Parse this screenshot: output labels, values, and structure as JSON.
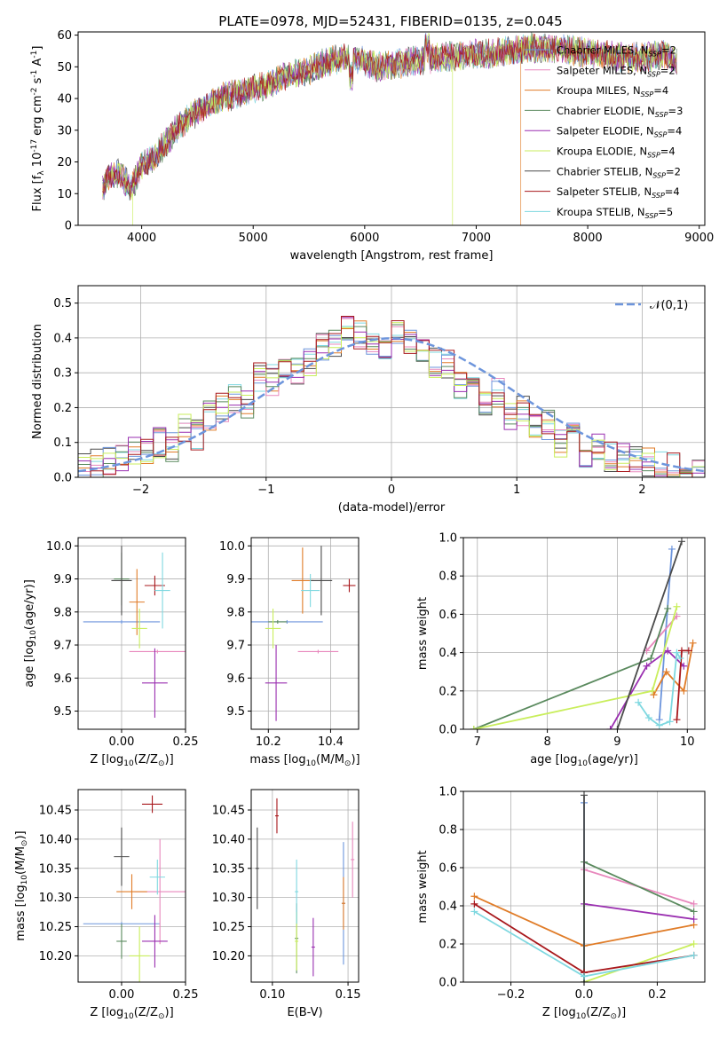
{
  "title": "PLATE=0978, MJD=52431, FIBERID=0135, z=0.045",
  "models": [
    {
      "name": "Chabrier MILES, N$_{SSP}$=2",
      "base": "Chabrier MILES, N",
      "sub": "SSP",
      "tail": "=2",
      "color": "#6d95dc"
    },
    {
      "name": "Salpeter MILES, N$_{SSP}$=2",
      "base": "Salpeter MILES, N",
      "sub": "SSP",
      "tail": "=2",
      "color": "#e888bd"
    },
    {
      "name": "Kroupa MILES, N$_{SSP}$=4",
      "base": "Kroupa MILES, N",
      "sub": "SSP",
      "tail": "=4",
      "color": "#e07c28"
    },
    {
      "name": "Chabrier ELODIE, N$_{SSP}$=3",
      "base": "Chabrier ELODIE, N",
      "sub": "SSP",
      "tail": "=3",
      "color": "#5a8a5e"
    },
    {
      "name": "Salpeter ELODIE, N$_{SSP}$=4",
      "base": "Salpeter ELODIE, N",
      "sub": "SSP",
      "tail": "=4",
      "color": "#9a2fb0"
    },
    {
      "name": "Kroupa ELODIE, N$_{SSP}$=4",
      "base": "Kroupa ELODIE, N",
      "sub": "SSP",
      "tail": "=4",
      "color": "#c9ee5c"
    },
    {
      "name": "Chabrier STELIB, N$_{SSP}$=2",
      "base": "Chabrier STELIB, N",
      "sub": "SSP",
      "tail": "=2",
      "color": "#4a4a4a"
    },
    {
      "name": "Salpeter STELIB, N$_{SSP}$=4",
      "base": "Salpeter STELIB, N",
      "sub": "SSP",
      "tail": "=4",
      "color": "#a8181c"
    },
    {
      "name": "Kroupa STELIB, N$_{SSP}$=5",
      "base": "Kroupa STELIB, N",
      "sub": "SSP",
      "tail": "=5",
      "color": "#7fd8e0"
    }
  ],
  "chart_data": [
    {
      "panel": "spectrum",
      "type": "line",
      "xlabel": "wavelength [Angstrom, rest frame]",
      "ylabel": "Flux [f$_\\lambda$ 10$^{-17}$ erg cm$^{-2}$ s$^{-1}$ A$^{-1}$]",
      "xlim": [
        3430,
        9050
      ],
      "ylim": [
        0,
        61
      ],
      "xticks": [
        4000,
        5000,
        6000,
        7000,
        8000,
        9000
      ],
      "yticks": [
        0,
        10,
        20,
        30,
        40,
        50,
        60
      ],
      "grid": false,
      "legend": "right",
      "spectrum_envelope": {
        "x": [
          3650,
          3700,
          3800,
          3900,
          3950,
          4000,
          4100,
          4200,
          4300,
          4400,
          4500,
          4700,
          4900,
          5100,
          5300,
          5500,
          5700,
          5900,
          6100,
          6300,
          6500,
          6700,
          6900,
          7100,
          7300,
          7500,
          7700,
          7900,
          8100,
          8300,
          8500,
          8700,
          8800
        ],
        "y": [
          12,
          15,
          17,
          11,
          15,
          19,
          21,
          25,
          30,
          33,
          36,
          40,
          42,
          44,
          47,
          49,
          52,
          53,
          50,
          51,
          52,
          53,
          54,
          54,
          55,
          56,
          56,
          55,
          54,
          53,
          53,
          54,
          51
        ]
      },
      "drops_to_zero": [
        {
          "model": "Kroupa ELODIE, N$_{SSP}$=4",
          "x": 3920
        },
        {
          "model": "Kroupa ELODIE, N$_{SSP}$=4",
          "x": 6790
        },
        {
          "model": "Kroupa MILES, N$_{SSP}$=4",
          "x": 7400
        }
      ]
    },
    {
      "panel": "residuals",
      "type": "histogram",
      "xlabel": "(data-model)/error",
      "ylabel": "Normed distribution",
      "xlim": [
        -2.5,
        2.5
      ],
      "ylim": [
        0,
        0.55
      ],
      "xticks": [
        -2,
        -1,
        0,
        1,
        2
      ],
      "yticks": [
        0,
        0.1,
        0.2,
        0.3,
        0.4,
        0.5
      ],
      "grid": true,
      "legend": "top-right",
      "reference_label": "$\\mathcal{N}(0,1)$",
      "reference": "normal mean 0 sigma 1",
      "bin_width": 0.1,
      "typical_bins": {
        "centers": [
          -2.45,
          -2.35,
          -2.25,
          -2.15,
          -2.05,
          -1.95,
          -1.85,
          -1.75,
          -1.65,
          -1.55,
          -1.45,
          -1.35,
          -1.25,
          -1.15,
          -1.05,
          -0.95,
          -0.85,
          -0.75,
          -0.65,
          -0.55,
          -0.45,
          -0.35,
          -0.25,
          -0.15,
          -0.05,
          0.05,
          0.15,
          0.25,
          0.35,
          0.45,
          0.55,
          0.65,
          0.75,
          0.85,
          0.95,
          1.05,
          1.15,
          1.25,
          1.35,
          1.45,
          1.55,
          1.65,
          1.75,
          1.85,
          1.95,
          2.05,
          2.15,
          2.25,
          2.35,
          2.45
        ],
        "values": [
          0.03,
          0.04,
          0.05,
          0.06,
          0.07,
          0.07,
          0.1,
          0.09,
          0.14,
          0.12,
          0.18,
          0.2,
          0.23,
          0.21,
          0.29,
          0.28,
          0.31,
          0.31,
          0.33,
          0.37,
          0.38,
          0.42,
          0.41,
          0.39,
          0.38,
          0.41,
          0.38,
          0.37,
          0.33,
          0.32,
          0.26,
          0.3,
          0.22,
          0.24,
          0.17,
          0.19,
          0.14,
          0.15,
          0.1,
          0.12,
          0.07,
          0.09,
          0.06,
          0.06,
          0.05,
          0.04,
          0.03,
          0.03,
          0.03,
          0.02
        ]
      }
    },
    {
      "panel": "Z-age",
      "type": "scatter",
      "xlabel": "Z [log$_{10}$(Z/Z$_\\odot$)]",
      "ylabel": "age  [log$_{10}$(age/yr)]",
      "xlim": [
        -0.17,
        0.25
      ],
      "ylim": [
        9.445,
        10.025
      ],
      "xticks": [
        0.0,
        0.25
      ],
      "yticks": [
        9.5,
        9.6,
        9.7,
        9.8,
        9.9,
        10.0
      ],
      "grid": true,
      "points": [
        {
          "model": 0,
          "x": 0.0,
          "y": 9.77,
          "xerr": 0.15,
          "yerr": 0.0
        },
        {
          "model": 1,
          "x": 0.14,
          "y": 9.68,
          "xerr": 0.11,
          "yerr": 0.0
        },
        {
          "model": 2,
          "x": 0.06,
          "y": 9.83,
          "xerr": 0.03,
          "yerr": 0.1
        },
        {
          "model": 3,
          "x": 0.0,
          "y": 9.9,
          "xerr": 0.03,
          "yerr": 0.08
        },
        {
          "model": 4,
          "x": 0.13,
          "y": 9.585,
          "xerr": 0.05,
          "yerr": 0.105
        },
        {
          "model": 5,
          "x": 0.07,
          "y": 9.75,
          "xerr": 0.03,
          "yerr": 0.06
        },
        {
          "model": 6,
          "x": 0.0,
          "y": 9.895,
          "xerr": 0.04,
          "yerr": 0.105
        },
        {
          "model": 7,
          "x": 0.13,
          "y": 9.88,
          "xerr": 0.04,
          "yerr": 0.03
        },
        {
          "model": 8,
          "x": 0.16,
          "y": 9.865,
          "xerr": 0.03,
          "yerr": 0.115
        }
      ]
    },
    {
      "panel": "mass-age",
      "type": "scatter",
      "xlabel": "mass [log$_{10}$(M/M$_\\odot$)]",
      "ylabel": "",
      "xlim": [
        10.145,
        10.49
      ],
      "ylim": [
        9.445,
        10.025
      ],
      "xticks": [
        10.2,
        10.4
      ],
      "yticks": [
        9.5,
        9.6,
        9.7,
        9.8,
        9.9,
        10.0
      ],
      "grid": true,
      "points": [
        {
          "model": 0,
          "x": 10.26,
          "y": 9.77,
          "xerr": 0.115,
          "yerr": 0.0
        },
        {
          "model": 1,
          "x": 10.36,
          "y": 9.68,
          "xerr": 0.065,
          "yerr": 0.0
        },
        {
          "model": 2,
          "x": 10.31,
          "y": 9.895,
          "xerr": 0.035,
          "yerr": 0.1
        },
        {
          "model": 3,
          "x": 10.23,
          "y": 9.77,
          "xerr": 0.03,
          "yerr": 0.0
        },
        {
          "model": 4,
          "x": 10.225,
          "y": 9.585,
          "xerr": 0.035,
          "yerr": 0.115
        },
        {
          "model": 5,
          "x": 10.215,
          "y": 9.75,
          "xerr": 0.025,
          "yerr": 0.06
        },
        {
          "model": 6,
          "x": 10.37,
          "y": 9.895,
          "xerr": 0.035,
          "yerr": 0.105
        },
        {
          "model": 7,
          "x": 10.46,
          "y": 9.88,
          "xerr": 0.02,
          "yerr": 0.02
        },
        {
          "model": 8,
          "x": 10.335,
          "y": 9.865,
          "xerr": 0.03,
          "yerr": 0.05
        }
      ]
    },
    {
      "panel": "age-weight",
      "type": "line",
      "xlabel": "age  [log$_{10}$(age/yr)]",
      "ylabel": "mass weight",
      "xlim": [
        6.8,
        10.25
      ],
      "ylim": [
        0,
        1.0
      ],
      "xticks": [
        7,
        8,
        9,
        10
      ],
      "yticks": [
        0.0,
        0.2,
        0.4,
        0.6,
        0.8,
        1.0
      ],
      "grid": true,
      "series": [
        {
          "model": 0,
          "x": [
            9.6,
            9.78
          ],
          "y": [
            0.05,
            0.94
          ]
        },
        {
          "model": 1,
          "x": [
            9.42,
            9.85
          ],
          "y": [
            0.41,
            0.59
          ]
        },
        {
          "model": 2,
          "x": [
            9.52,
            9.7,
            9.95,
            10.08
          ],
          "y": [
            0.18,
            0.3,
            0.2,
            0.45
          ]
        },
        {
          "model": 3,
          "x": [
            6.95,
            9.48,
            9.72
          ],
          "y": [
            0.0,
            0.37,
            0.63
          ]
        },
        {
          "model": 4,
          "x": [
            8.9,
            9.42,
            9.72,
            9.95
          ],
          "y": [
            0.0,
            0.33,
            0.41,
            0.33
          ]
        },
        {
          "model": 5,
          "x": [
            6.95,
            9.5,
            9.85
          ],
          "y": [
            0.0,
            0.2,
            0.64
          ]
        },
        {
          "model": 6,
          "x": [
            9.0,
            9.92
          ],
          "y": [
            0.0,
            0.98
          ]
        },
        {
          "model": 7,
          "x": [
            9.85,
            9.92,
            10.02
          ],
          "y": [
            0.05,
            0.41,
            0.41
          ]
        },
        {
          "model": 8,
          "x": [
            9.3,
            9.45,
            9.6,
            9.75,
            9.85,
            9.9
          ],
          "y": [
            0.14,
            0.06,
            0.02,
            0.04,
            0.4,
            0.37
          ]
        }
      ]
    },
    {
      "panel": "Z-mass",
      "type": "scatter",
      "xlabel": "Z [log$_{10}$(Z/Z$_\\odot$)]",
      "ylabel": "mass [log$_{10}$(M/M$_\\odot$)]",
      "xlim": [
        -0.17,
        0.25
      ],
      "ylim": [
        10.155,
        10.485
      ],
      "xticks": [
        0.0,
        0.25
      ],
      "yticks": [
        10.2,
        10.25,
        10.3,
        10.35,
        10.4,
        10.45
      ],
      "grid": true,
      "points": [
        {
          "model": 0,
          "x": 0.0,
          "y": 10.255,
          "xerr": 0.15,
          "yerr": 0.0
        },
        {
          "model": 1,
          "x": 0.15,
          "y": 10.31,
          "xerr": 0.1,
          "yerr": 0.09
        },
        {
          "model": 2,
          "x": 0.04,
          "y": 10.31,
          "xerr": 0.06,
          "yerr": 0.03
        },
        {
          "model": 3,
          "x": 0.0,
          "y": 10.225,
          "xerr": 0.02,
          "yerr": 0.03
        },
        {
          "model": 4,
          "x": 0.13,
          "y": 10.225,
          "xerr": 0.05,
          "yerr": 0.045
        },
        {
          "model": 5,
          "x": 0.07,
          "y": 10.2,
          "xerr": 0.04,
          "yerr": 0.05
        },
        {
          "model": 6,
          "x": 0.0,
          "y": 10.37,
          "xerr": 0.03,
          "yerr": 0.05
        },
        {
          "model": 7,
          "x": 0.12,
          "y": 10.46,
          "xerr": 0.04,
          "yerr": 0.015
        },
        {
          "model": 8,
          "x": 0.14,
          "y": 10.335,
          "xerr": 0.03,
          "yerr": 0.03
        }
      ]
    },
    {
      "panel": "EBV-mass",
      "type": "scatter",
      "xlabel": "E(B-V)",
      "ylabel": "",
      "xlim": [
        0.086,
        0.157
      ],
      "ylim": [
        10.155,
        10.485
      ],
      "xticks": [
        0.1,
        0.15
      ],
      "yticks": [
        10.2,
        10.25,
        10.3,
        10.35,
        10.4,
        10.45
      ],
      "grid": true,
      "points": [
        {
          "model": 0,
          "x": 0.147,
          "y": 10.29,
          "xerr": 0.0,
          "yerr": 0.105
        },
        {
          "model": 1,
          "x": 0.153,
          "y": 10.365,
          "xerr": 0.0,
          "yerr": 0.065
        },
        {
          "model": 2,
          "x": 0.147,
          "y": 10.29,
          "xerr": 0.0,
          "yerr": 0.045
        },
        {
          "model": 3,
          "x": 0.116,
          "y": 10.23,
          "xerr": 0.0,
          "yerr": 0.06
        },
        {
          "model": 4,
          "x": 0.127,
          "y": 10.215,
          "xerr": 0.0,
          "yerr": 0.05
        },
        {
          "model": 5,
          "x": 0.116,
          "y": 10.225,
          "xerr": 0.0,
          "yerr": 0.05
        },
        {
          "model": 6,
          "x": 0.09,
          "y": 10.35,
          "xerr": 0.0,
          "yerr": 0.07
        },
        {
          "model": 7,
          "x": 0.103,
          "y": 10.44,
          "xerr": 0.0,
          "yerr": 0.03
        },
        {
          "model": 8,
          "x": 0.116,
          "y": 10.31,
          "xerr": 0.0,
          "yerr": 0.055
        }
      ]
    },
    {
      "panel": "Z-weight",
      "type": "line",
      "xlabel": "Z [log$_{10}$(Z/Z$_\\odot$)]",
      "ylabel": "mass weight",
      "xlim": [
        -0.33,
        0.33
      ],
      "ylim": [
        0,
        1.0
      ],
      "xticks": [
        -0.2,
        0.0,
        0.2
      ],
      "yticks": [
        0.0,
        0.2,
        0.4,
        0.6,
        0.8,
        1.0
      ],
      "grid": true,
      "series": [
        {
          "model": 0,
          "x": [
            0.0,
            0.0
          ],
          "y": [
            0.05,
            0.94
          ]
        },
        {
          "model": 1,
          "x": [
            0.0,
            0.3
          ],
          "y": [
            0.59,
            0.41
          ]
        },
        {
          "model": 2,
          "x": [
            -0.3,
            0.0,
            0.3
          ],
          "y": [
            0.45,
            0.19,
            0.3
          ]
        },
        {
          "model": 3,
          "x": [
            0.0,
            0.0,
            0.3
          ],
          "y": [
            0.0,
            0.63,
            0.37
          ]
        },
        {
          "model": 4,
          "x": [
            0.0,
            0.3
          ],
          "y": [
            0.41,
            0.33
          ]
        },
        {
          "model": 5,
          "x": [
            0.0,
            0.3
          ],
          "y": [
            0.0,
            0.2
          ]
        },
        {
          "model": 6,
          "x": [
            0.0,
            0.0
          ],
          "y": [
            0.0,
            0.98
          ]
        },
        {
          "model": 7,
          "x": [
            -0.3,
            0.0,
            0.3
          ],
          "y": [
            0.41,
            0.05,
            0.14
          ]
        },
        {
          "model": 8,
          "x": [
            -0.3,
            0.0,
            0.3
          ],
          "y": [
            0.37,
            0.03,
            0.14
          ]
        }
      ]
    }
  ]
}
